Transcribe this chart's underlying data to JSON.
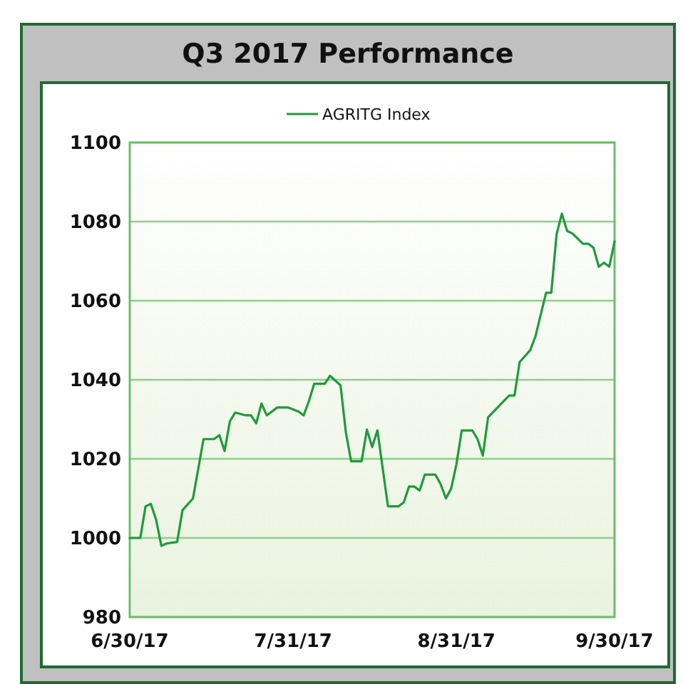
{
  "chart_data": {
    "type": "line",
    "title": "Q3 2017 Performance",
    "x": [
      "2017-06-30",
      "2017-07-02",
      "2017-07-03",
      "2017-07-04",
      "2017-07-05",
      "2017-07-06",
      "2017-07-07",
      "2017-07-09",
      "2017-07-10",
      "2017-07-12",
      "2017-07-14",
      "2017-07-16",
      "2017-07-17",
      "2017-07-18",
      "2017-07-19",
      "2017-07-20",
      "2017-07-22",
      "2017-07-23",
      "2017-07-24",
      "2017-07-25",
      "2017-07-26",
      "2017-07-28",
      "2017-07-30",
      "2017-08-01",
      "2017-08-02",
      "2017-08-03",
      "2017-08-04",
      "2017-08-06",
      "2017-08-07",
      "2017-08-09",
      "2017-08-10",
      "2017-08-11",
      "2017-08-13",
      "2017-08-14",
      "2017-08-15",
      "2017-08-16",
      "2017-08-18",
      "2017-08-20",
      "2017-08-21",
      "2017-08-22",
      "2017-08-23",
      "2017-08-24",
      "2017-08-25",
      "2017-08-27",
      "2017-08-28",
      "2017-08-29",
      "2017-08-30",
      "2017-08-31",
      "2017-09-01",
      "2017-09-03",
      "2017-09-04",
      "2017-09-05",
      "2017-09-06",
      "2017-09-10",
      "2017-09-11",
      "2017-09-12",
      "2017-09-13",
      "2017-09-14",
      "2017-09-15",
      "2017-09-17",
      "2017-09-18",
      "2017-09-19",
      "2017-09-20",
      "2017-09-21",
      "2017-09-22",
      "2017-09-24",
      "2017-09-25",
      "2017-09-26",
      "2017-09-27",
      "2017-09-28",
      "2017-09-29",
      "2017-09-30"
    ],
    "series": [
      {
        "name": "AGRITG Index",
        "color": "#1f9a3c",
        "values": [
          1000,
          1000,
          1008,
          1008.6,
          1004.6,
          998,
          998.6,
          999,
          1007,
          1010,
          1025,
          1025,
          1026,
          1022,
          1029.5,
          1031.7,
          1031,
          1031,
          1029,
          1034,
          1031,
          1033,
          1033,
          1032,
          1031,
          1034.6,
          1039,
          1039,
          1041,
          1038.6,
          1026.8,
          1019.4,
          1019.4,
          1027.4,
          1023,
          1027.2,
          1008,
          1008,
          1009,
          1013,
          1013,
          1012,
          1016,
          1016,
          1013.6,
          1010,
          1012.5,
          1018.7,
          1027.2,
          1027.2,
          1025,
          1020.8,
          1030.5,
          1036,
          1036,
          1044.5,
          1046,
          1047.5,
          1051,
          1062,
          1062,
          1076.8,
          1082,
          1077.6,
          1077,
          1074.4,
          1074.4,
          1073.4,
          1068.6,
          1069.6,
          1068.6,
          1075
        ]
      }
    ],
    "xlim": [
      "2017-06-30",
      "2017-09-30"
    ],
    "xticks": [
      {
        "value": "2017-06-30",
        "label": "6/30/17"
      },
      {
        "value": "2017-07-31",
        "label": "7/31/17"
      },
      {
        "value": "2017-08-31",
        "label": "8/31/17"
      },
      {
        "value": "2017-09-30",
        "label": "9/30/17"
      }
    ],
    "ylim": [
      980,
      1100
    ],
    "yticks": [
      980,
      1000,
      1020,
      1040,
      1060,
      1080,
      1100
    ],
    "grid": "y",
    "legend": "top",
    "marker": "none",
    "line_style": "solid"
  }
}
